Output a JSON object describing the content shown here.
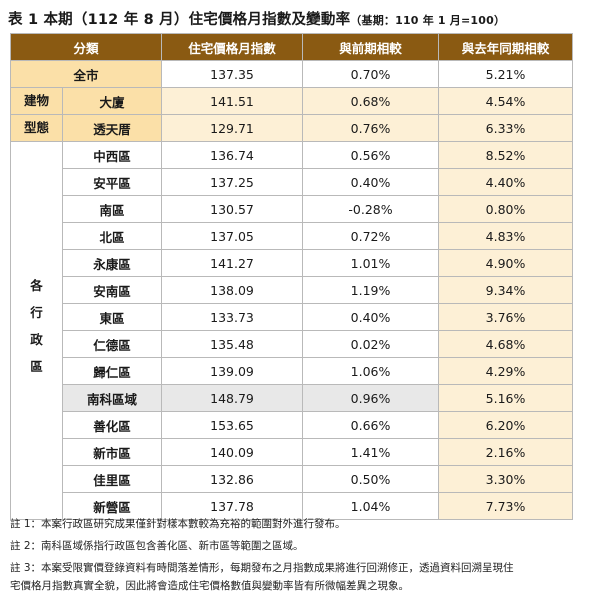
{
  "title": "表 1 本期（112 年 8 月）住宅價格月指數及變動率",
  "base_note": "（基期：110 年 1 月=100）",
  "headers": [
    "分類",
    "住宅價格月指數",
    "與前期相較",
    "與去年同期相較"
  ],
  "whole_city": {
    "name": "全市",
    "index": "137.35",
    "mom": "0.70%",
    "yoy": "5.21%"
  },
  "building_type": {
    "label_1": "建物",
    "label_2": "型態",
    "rows": [
      {
        "name": "大廈",
        "index": "141.51",
        "mom": "0.68%",
        "yoy": "4.54%"
      },
      {
        "name": "透天厝",
        "index": "129.71",
        "mom": "0.76%",
        "yoy": "6.33%"
      }
    ]
  },
  "districts": {
    "label_chars": [
      "各",
      "行",
      "政",
      "區"
    ],
    "rows": [
      {
        "name": "中西區",
        "index": "136.74",
        "mom": "0.56%",
        "yoy": "8.52%"
      },
      {
        "name": "安平區",
        "index": "137.25",
        "mom": "0.40%",
        "yoy": "4.40%"
      },
      {
        "name": "南區",
        "index": "130.57",
        "mom": "-0.28%",
        "yoy": "0.80%"
      },
      {
        "name": "北區",
        "index": "137.05",
        "mom": "0.72%",
        "yoy": "4.83%"
      },
      {
        "name": "永康區",
        "index": "141.27",
        "mom": "1.01%",
        "yoy": "4.90%"
      },
      {
        "name": "安南區",
        "index": "138.09",
        "mom": "1.19%",
        "yoy": "9.34%"
      },
      {
        "name": "東區",
        "index": "133.73",
        "mom": "0.40%",
        "yoy": "3.76%"
      },
      {
        "name": "仁德區",
        "index": "135.48",
        "mom": "0.02%",
        "yoy": "4.68%"
      },
      {
        "name": "歸仁區",
        "index": "139.09",
        "mom": "1.06%",
        "yoy": "4.29%"
      },
      {
        "name": "南科區域",
        "index": "148.79",
        "mom": "0.96%",
        "yoy": "5.16%"
      },
      {
        "name": "善化區",
        "index": "153.65",
        "mom": "0.66%",
        "yoy": "6.20%"
      },
      {
        "name": "新市區",
        "index": "140.09",
        "mom": "1.41%",
        "yoy": "2.16%"
      },
      {
        "name": "佳里區",
        "index": "132.86",
        "mom": "0.50%",
        "yoy": "3.30%"
      },
      {
        "name": "新營區",
        "index": "137.78",
        "mom": "1.04%",
        "yoy": "7.73%"
      }
    ]
  },
  "notes": [
    "註 1：本案行政區研究成果僅針對樣本數較為充裕的範圍對外進行發布。",
    "註 2：南科區域係指行政區包含善化區、新市區等範圍之區域。",
    "註 3：本案受限實價登錄資料有時間落差情形，每期發布之月指數成果將進行回溯修正，透過資料回溯呈現住",
    "宅價格月指數真實全貌，因此將會造成住宅價格數值與變動率皆有所微幅差異之現象。"
  ],
  "colors": {
    "header_bg": "#8a5a12",
    "category_bg": "#fbe0a8",
    "highlight_bg": "#fdf0d6",
    "grey_row_bg": "#e8e8e8"
  }
}
